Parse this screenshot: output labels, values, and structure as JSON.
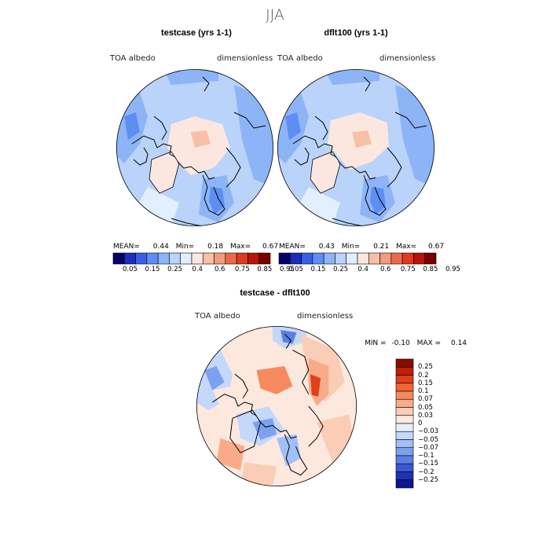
{
  "figure": {
    "season": "JJA"
  },
  "panels": [
    {
      "title": "testcase (yrs 1-1)",
      "field_label": "TOA albedo",
      "units_label": "dimensionless",
      "stats": {
        "mean_label": "MEAN=",
        "mean": "0.44",
        "min_label": "Min=",
        "min": "0.18",
        "max_label": "Max=",
        "max": "0.67"
      }
    },
    {
      "title": "dflt100 (yrs 1-1)",
      "field_label": "TOA albedo",
      "units_label": "dimensionless",
      "stats": {
        "mean_label": "MEAN=",
        "mean": "0.43",
        "min_label": "Min=",
        "min": "0.21",
        "max_label": "Max=",
        "max": "0.67"
      }
    }
  ],
  "difference": {
    "title": "testcase - dflt100",
    "field_label": "TOA albedo",
    "units_label": "dimensionless",
    "stats": {
      "min_label": "MIN =",
      "min": "-0.10",
      "max_label": "MAX =",
      "max": "0.14"
    }
  },
  "chart_data": [
    {
      "type": "heatmap",
      "projection": "north-polar-stereographic",
      "title": "testcase (yrs 1-1)",
      "variable": "TOA albedo",
      "units": "dimensionless",
      "colorbar_labels": [
        "0.05",
        "0.15",
        "0.25",
        "0.4",
        "0.6",
        "0.75",
        "0.85",
        "0.95"
      ],
      "colorbar_colors": [
        "#08006a",
        "#1c2cbd",
        "#3a5fe2",
        "#5e8ef2",
        "#8db4f7",
        "#b9d3fa",
        "#e2efff",
        "#fbe7df",
        "#f7c0a8",
        "#f39b80",
        "#ec6a4c",
        "#de3a20",
        "#b81408",
        "#7a0000"
      ],
      "mean": 0.44,
      "min": 0.18,
      "max": 0.67
    },
    {
      "type": "heatmap",
      "projection": "north-polar-stereographic",
      "title": "dflt100 (yrs 1-1)",
      "variable": "TOA albedo",
      "units": "dimensionless",
      "colorbar_labels": [
        "0.05",
        "0.15",
        "0.25",
        "0.4",
        "0.6",
        "0.75",
        "0.85",
        "0.95"
      ],
      "colorbar_colors": [
        "#08006a",
        "#1c2cbd",
        "#3a5fe2",
        "#5e8ef2",
        "#8db4f7",
        "#b9d3fa",
        "#e2efff",
        "#fbe7df",
        "#f7c0a8",
        "#f39b80",
        "#ec6a4c",
        "#de3a20",
        "#b81408",
        "#7a0000"
      ],
      "mean": 0.43,
      "min": 0.21,
      "max": 0.67
    },
    {
      "type": "heatmap",
      "projection": "north-polar-stereographic",
      "title": "testcase - dflt100",
      "variable": "TOA albedo",
      "units": "dimensionless",
      "colorbar_labels": [
        "0.25",
        "0.2",
        "0.15",
        "0.1",
        "0.07",
        "0.05",
        "0.03",
        "0",
        "−0.03",
        "−0.05",
        "−0.07",
        "−0.1",
        "−0.15",
        "−0.2",
        "−0.25"
      ],
      "colorbar_colors": [
        "#8a0a00",
        "#c01f06",
        "#e0401a",
        "#f26434",
        "#f6895e",
        "#f9ab89",
        "#fbcdb6",
        "#fde8dd",
        "#e3efff",
        "#c4d8fb",
        "#a2bff6",
        "#7ea1ef",
        "#5b7fe4",
        "#3a58d4",
        "#1e32b4",
        "#0b1690"
      ],
      "min": -0.1,
      "max": 0.14
    }
  ]
}
